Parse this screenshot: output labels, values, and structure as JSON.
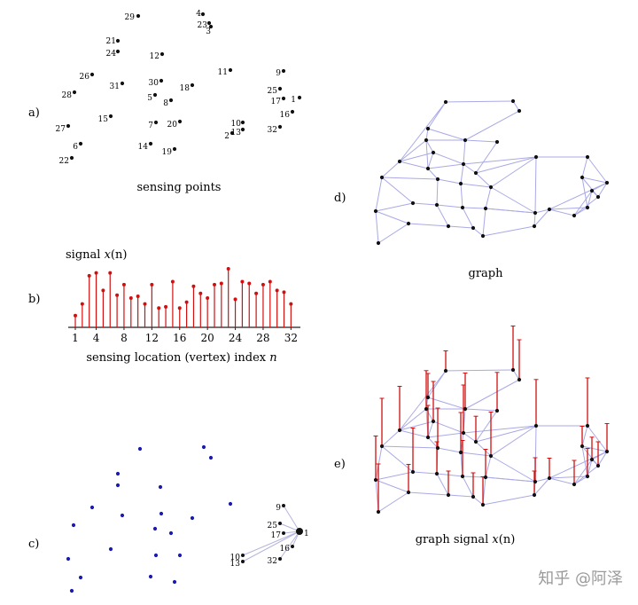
{
  "panels": {
    "a": {
      "label": "a)",
      "caption": "sensing points"
    },
    "b": {
      "label": "b)",
      "title_prefix": "signal ",
      "title_var": "x",
      "title_suffix": "(n)",
      "xlabel_prefix": "sensing location (vertex) index ",
      "xlabel_var": "n"
    },
    "c": {
      "label": "c)"
    },
    "d": {
      "label": "d)",
      "caption": "graph"
    },
    "e": {
      "label": "e)",
      "caption_prefix": "graph signal ",
      "caption_var": "x",
      "caption_suffix": "(n)"
    }
  },
  "watermark": "知乎 @阿泽",
  "colors": {
    "point": "#111111",
    "stem": "#d01010",
    "edge": "#a9a9e6",
    "c_point": "#1a1ab4",
    "c_edge": "#b5b5dd",
    "axis": "#222222"
  },
  "sensing_point_ids": [
    "29",
    "4",
    "23",
    "3",
    "21",
    "24",
    "12",
    "11",
    "26",
    "9",
    "31",
    "30",
    "18",
    "28",
    "25",
    "17",
    "1",
    "5",
    "8",
    "15",
    "10",
    "16",
    "27",
    "7",
    "20",
    "2",
    "13",
    "32",
    "6",
    "14",
    "19",
    "22"
  ],
  "c_highlight_ids": [
    "9",
    "25",
    "17",
    "1",
    "10",
    "13",
    "16",
    "32"
  ],
  "chart_data": {
    "type": "bar",
    "style": "stem",
    "title": "signal x(n)",
    "xlabel": "sensing location (vertex) index n",
    "x": [
      1,
      2,
      3,
      4,
      5,
      6,
      7,
      8,
      9,
      10,
      11,
      12,
      13,
      14,
      15,
      16,
      17,
      18,
      19,
      20,
      21,
      22,
      23,
      24,
      25,
      26,
      27,
      28,
      29,
      30,
      31,
      32
    ],
    "values": [
      0.2,
      0.4,
      0.88,
      0.93,
      0.63,
      0.93,
      0.55,
      0.73,
      0.5,
      0.53,
      0.4,
      0.73,
      0.33,
      0.35,
      0.78,
      0.33,
      0.43,
      0.7,
      0.58,
      0.5,
      0.73,
      0.75,
      1.0,
      0.48,
      0.78,
      0.75,
      0.58,
      0.73,
      0.78,
      0.63,
      0.6,
      0.4
    ],
    "xticks": [
      "4",
      "8",
      "12",
      "16",
      "20",
      "24",
      "28",
      "32"
    ],
    "xtick_values": [
      1,
      4,
      8,
      12,
      16,
      20,
      24,
      28,
      32
    ],
    "xtick_labels": [
      "1",
      "4",
      "8",
      "12",
      "16",
      "20",
      "24",
      "28",
      "32"
    ]
  }
}
